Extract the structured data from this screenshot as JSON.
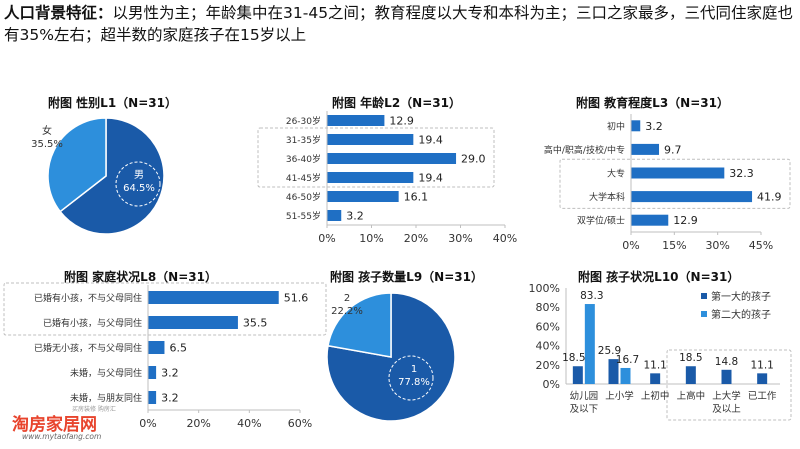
{
  "headline": {
    "bold": "人口背景特征：",
    "text": "以男性为主；年龄集中在31-45之间；教育程度以大专和本科为主；三口之家最多，三代同住家庭也有35%左右；超半数的家庭孩子在15岁以上"
  },
  "colors": {
    "primary": "#1a5aa8",
    "secondary": "#2d8fdc",
    "bar": "#1f6fc4",
    "axis": "#bfbfbf"
  },
  "chart_data": [
    {
      "id": "gender",
      "type": "pie",
      "title": "附图  性别L1（N=31）",
      "slices": [
        {
          "label": "男",
          "value": 64.5,
          "display": "64.5%",
          "color": "#1a5aa8"
        },
        {
          "label": "女",
          "value": 35.5,
          "display": "35.5%",
          "color": "#2d8fdc"
        }
      ]
    },
    {
      "id": "age",
      "type": "bar",
      "orientation": "horizontal",
      "title": "附图  年龄L2（N=31）",
      "categories": [
        "26-30岁",
        "31-35岁",
        "36-40岁",
        "41-45岁",
        "46-50岁",
        "51-55岁"
      ],
      "values": [
        12.9,
        19.4,
        29.0,
        19.4,
        16.1,
        3.2
      ],
      "labels": [
        "12.9",
        "19.4",
        "29.0",
        "19.4",
        "16.1",
        "3.2"
      ],
      "xlim": [
        0,
        40
      ],
      "ticks": [
        "0%",
        "10%",
        "20%",
        "30%",
        "40%"
      ],
      "ticks_values": [
        0,
        10,
        20,
        30,
        40
      ],
      "highlight": [
        1,
        3
      ]
    },
    {
      "id": "education",
      "type": "bar",
      "orientation": "horizontal",
      "title": "附图  教育程度L3（N=31）",
      "categories": [
        "初中",
        "高中/职高/技校/中专",
        "大专",
        "大学本科",
        "双学位/硕士"
      ],
      "values": [
        3.2,
        9.7,
        32.3,
        41.9,
        12.9
      ],
      "labels": [
        "3.2",
        "9.7",
        "32.3",
        "41.9",
        "12.9"
      ],
      "xlim": [
        0,
        45
      ],
      "ticks": [
        "0%",
        "15%",
        "30%",
        "45%"
      ],
      "ticks_values": [
        0,
        15,
        30,
        45
      ],
      "highlight": [
        2,
        3
      ]
    },
    {
      "id": "family",
      "type": "bar",
      "orientation": "horizontal",
      "title": "附图  家庭状况L8（N=31）",
      "categories": [
        "已婚有小孩，不与父母同住",
        "已婚有小孩，与父母同住",
        "已婚无小孩，不与父母同住",
        "未婚，与父母同住",
        "未婚，与朋友同住"
      ],
      "values": [
        51.6,
        35.5,
        6.5,
        3.2,
        3.2
      ],
      "labels": [
        "51.6",
        "35.5",
        "6.5",
        "3.2",
        "3.2"
      ],
      "xlim": [
        0,
        60
      ],
      "ticks": [
        "0%",
        "20%",
        "40%",
        "60%"
      ],
      "ticks_values": [
        0,
        20,
        40,
        60
      ],
      "highlight": [
        0,
        1
      ]
    },
    {
      "id": "children",
      "type": "pie",
      "title": "附图  孩子数量L9（N=31）",
      "slices": [
        {
          "label": "1",
          "value": 77.8,
          "display": "77.8%",
          "color": "#1a5aa8"
        },
        {
          "label": "2",
          "value": 22.2,
          "display": "22.2%",
          "color": "#2d8fdc"
        }
      ]
    },
    {
      "id": "child_status",
      "type": "bar",
      "orientation": "vertical",
      "title": "附图  孩子状况L10（N=31）",
      "categories": [
        "幼儿园及以下",
        "上小学",
        "上初中",
        "上高中",
        "上大学及以上",
        "已工作"
      ],
      "category_lines": [
        [
          "幼儿园",
          "及以下"
        ],
        [
          "上小学"
        ],
        [
          "上初中"
        ],
        [
          "上高中"
        ],
        [
          "上大学",
          "及以上"
        ],
        [
          "已工作"
        ]
      ],
      "series": [
        {
          "name": "第一大的孩子",
          "color": "#1a5aa8",
          "values": [
            18.5,
            25.9,
            11.1,
            18.5,
            14.8,
            11.1
          ],
          "labels": [
            "18.5",
            "25.9",
            "11.1",
            "18.5",
            "14.8",
            "11.1"
          ]
        },
        {
          "name": "第二大的孩子",
          "color": "#2d8fdc",
          "values": [
            83.3,
            16.7,
            0,
            0,
            0,
            0
          ],
          "labels": [
            "83.3",
            "16.7",
            "",
            "",
            "",
            ""
          ]
        }
      ],
      "ylim": [
        0,
        100
      ],
      "ticks": [
        "0%",
        "20%",
        "40%",
        "60%",
        "80%",
        "100%"
      ],
      "ticks_values": [
        0,
        20,
        40,
        60,
        80,
        100
      ]
    }
  ],
  "logo": {
    "brand": "淘房家居网",
    "url": "www.mytaofang.com",
    "tag": "买房装修 购房汇"
  }
}
